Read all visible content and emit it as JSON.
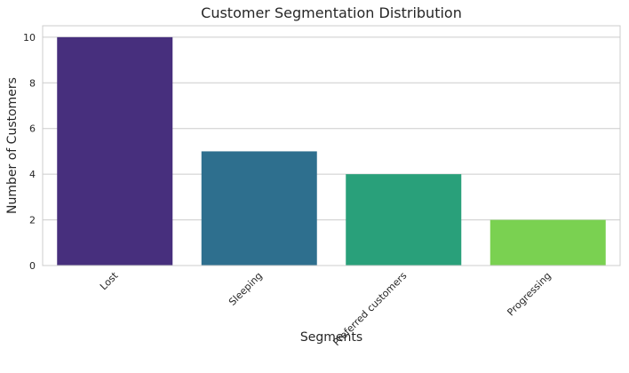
{
  "chart_data": {
    "type": "bar",
    "title": "Customer Segmentation Distribution",
    "xlabel": "Segments",
    "ylabel": "Number of Customers",
    "categories": [
      "Lost",
      "Sleeping",
      "Preferred customers",
      "Progressing"
    ],
    "values": [
      10,
      5,
      4,
      2
    ],
    "colors": [
      "#472f7d",
      "#2e6f8e",
      "#29a07a",
      "#7ad151"
    ],
    "ylim": [
      0,
      10.5
    ],
    "yticks": [
      0,
      2,
      4,
      6,
      8,
      10
    ],
    "grid": true,
    "grid_axis": "y",
    "legend": "none",
    "x_tick_rotation": "45"
  }
}
